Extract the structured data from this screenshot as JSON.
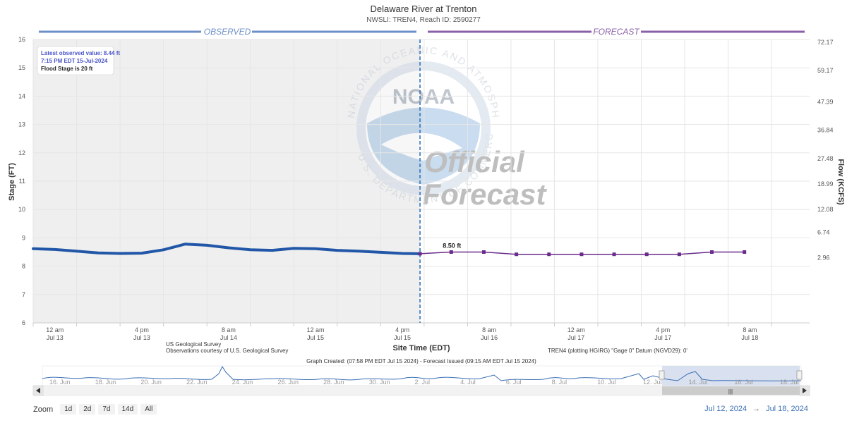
{
  "header": {
    "title": "Delaware River at Trenton",
    "subtitle": "NWSLI: TREN4, Reach ID: 2590277"
  },
  "bands": {
    "observed_label": "OBSERVED",
    "forecast_label": "FORECAST"
  },
  "info_box": {
    "latest_value": "Latest observed value: 8.44 ft",
    "latest_time": "7:15 PM EDT 15-Jul-2024",
    "flood_stage": "Flood Stage is 20 ft"
  },
  "watermark": {
    "agency_ring": "NATIONAL OCEANIC AND ATMOSPHERIC ADMINISTRATION",
    "dept_ring": "U.S. DEPARTMENT OF COMMERCE",
    "logo": "NOAA",
    "line1": "Official",
    "line2": "Forecast"
  },
  "credits": {
    "left1": "US Geological Survey",
    "left2": "Observations courtesy of U.S. Geological Survey",
    "right": "TREN4 (plotting HGIRG) \"Gage 0\" Datum (NGVD29): 0'",
    "created": "Graph Created: (07:58 PM EDT Jul 15 2024) - Forecast Issued (09:15 AM EDT Jul 15 2024)"
  },
  "zoom": {
    "label": "Zoom",
    "buttons": [
      "1d",
      "2d",
      "7d",
      "14d",
      "All"
    ]
  },
  "range": {
    "from": "Jul 12, 2024",
    "arrow": "→",
    "to": "Jul 18, 2024"
  },
  "colors": {
    "observed": "#2257a8",
    "forecast": "#6a2c8a",
    "observed_band": "#6c8fc7",
    "forecast_band": "#8a5fa8",
    "observed_bg": "#efefef",
    "now_line": "#2a6db5"
  },
  "chart_data": {
    "type": "line",
    "xlabel": "Site Time (EDT)",
    "ylabel": "Stage (FT)",
    "y2label": "Flow (KCFS)",
    "ylim": [
      6,
      16
    ],
    "xlim": [
      "2024-07-12 20:00",
      "2024-07-18 19:00"
    ],
    "y_ticks": [
      6,
      7,
      8,
      9,
      10,
      11,
      12,
      13,
      14,
      15,
      16
    ],
    "y2_ticks": [
      {
        "stage": 8.3,
        "label": "2.96"
      },
      {
        "stage": 9.2,
        "label": "6.74"
      },
      {
        "stage": 10.0,
        "label": "12.08"
      },
      {
        "stage": 10.9,
        "label": "18.99"
      },
      {
        "stage": 11.8,
        "label": "27.48"
      },
      {
        "stage": 12.8,
        "label": "36.84"
      },
      {
        "stage": 13.8,
        "label": "47.39"
      },
      {
        "stage": 14.9,
        "label": "59.17"
      },
      {
        "stage": 15.9,
        "label": "72.17"
      }
    ],
    "x_ticks": [
      {
        "t": "2024-07-13 00:00",
        "l1": "12 am",
        "l2": "Jul 13"
      },
      {
        "t": "2024-07-13 16:00",
        "l1": "4 pm",
        "l2": "Jul 13"
      },
      {
        "t": "2024-07-14 08:00",
        "l1": "8 am",
        "l2": "Jul 14"
      },
      {
        "t": "2024-07-15 00:00",
        "l1": "12 am",
        "l2": "Jul 15"
      },
      {
        "t": "2024-07-15 16:00",
        "l1": "4 pm",
        "l2": "Jul 15"
      },
      {
        "t": "2024-07-16 08:00",
        "l1": "8 am",
        "l2": "Jul 16"
      },
      {
        "t": "2024-07-17 00:00",
        "l1": "12 am",
        "l2": "Jul 17"
      },
      {
        "t": "2024-07-17 16:00",
        "l1": "4 pm",
        "l2": "Jul 17"
      },
      {
        "t": "2024-07-18 08:00",
        "l1": "8 am",
        "l2": "Jul 18"
      }
    ],
    "now": "2024-07-15 19:15",
    "series": [
      {
        "name": "Observed",
        "x": [
          "2024-07-12 20:00",
          "2024-07-13 00:00",
          "2024-07-13 04:00",
          "2024-07-13 08:00",
          "2024-07-13 12:00",
          "2024-07-13 16:00",
          "2024-07-13 20:00",
          "2024-07-14 00:00",
          "2024-07-14 04:00",
          "2024-07-14 08:00",
          "2024-07-14 12:00",
          "2024-07-14 16:00",
          "2024-07-14 20:00",
          "2024-07-15 00:00",
          "2024-07-15 04:00",
          "2024-07-15 08:00",
          "2024-07-15 12:00",
          "2024-07-15 16:00",
          "2024-07-15 19:15"
        ],
        "y": [
          8.62,
          8.59,
          8.53,
          8.47,
          8.45,
          8.46,
          8.58,
          8.78,
          8.74,
          8.65,
          8.58,
          8.56,
          8.63,
          8.62,
          8.56,
          8.53,
          8.49,
          8.45,
          8.44
        ]
      },
      {
        "name": "Forecast",
        "x": [
          "2024-07-15 19:15",
          "2024-07-16 01:00",
          "2024-07-16 07:00",
          "2024-07-16 13:00",
          "2024-07-16 19:00",
          "2024-07-17 01:00",
          "2024-07-17 07:00",
          "2024-07-17 13:00",
          "2024-07-17 19:00",
          "2024-07-18 01:00",
          "2024-07-18 07:00"
        ],
        "y": [
          8.44,
          8.5,
          8.5,
          8.42,
          8.42,
          8.42,
          8.42,
          8.42,
          8.42,
          8.5,
          8.5
        ]
      }
    ],
    "annotation": {
      "x": "2024-07-16 01:00",
      "y": 8.5,
      "text": "8.50 ft"
    },
    "navigator": {
      "labels": [
        "16. Jun",
        "18. Jun",
        "20. Jun",
        "22. Jun",
        "24. Jun",
        "26. Jun",
        "28. Jun",
        "30. Jun",
        "2. Jul",
        "4. Jul",
        "6. Jul",
        "8. Jul",
        "10. Jul",
        "12. Jul",
        "14. Jul",
        "16. Jul",
        "18. Jul"
      ],
      "handle_glyph": "|||"
    }
  }
}
